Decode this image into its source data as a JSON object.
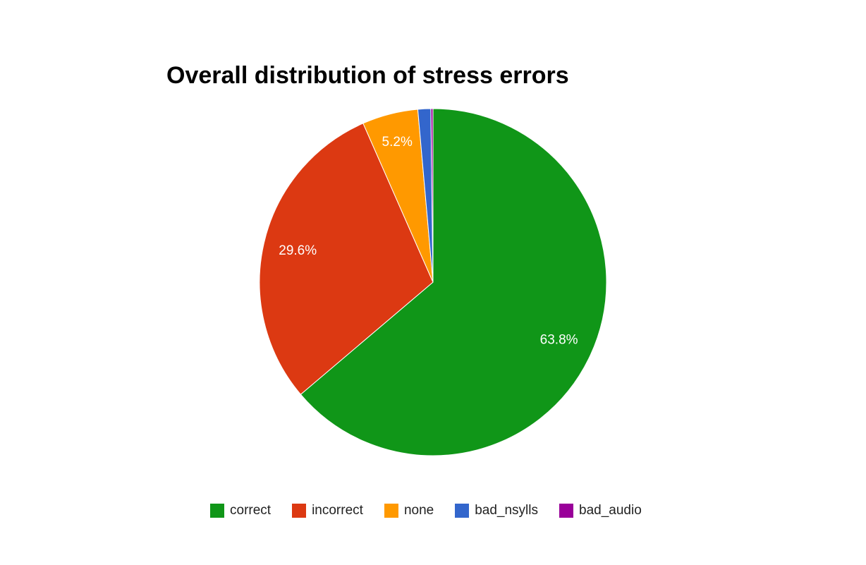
{
  "chart_data": {
    "type": "pie",
    "title": "Overall distribution of stress errors",
    "legend_position": "bottom",
    "slices": [
      {
        "label": "correct",
        "value": 63.8,
        "data_label": "63.8%",
        "color": "#109618"
      },
      {
        "label": "incorrect",
        "value": 29.6,
        "data_label": "29.6%",
        "color": "#dc3912"
      },
      {
        "label": "none",
        "value": 5.2,
        "data_label": "5.2%",
        "color": "#ff9900"
      },
      {
        "label": "bad_nsylls",
        "value": 1.2,
        "data_label": "",
        "color": "#3366cc"
      },
      {
        "label": "bad_audio",
        "value": 0.2,
        "data_label": "",
        "color": "#990099"
      }
    ]
  }
}
